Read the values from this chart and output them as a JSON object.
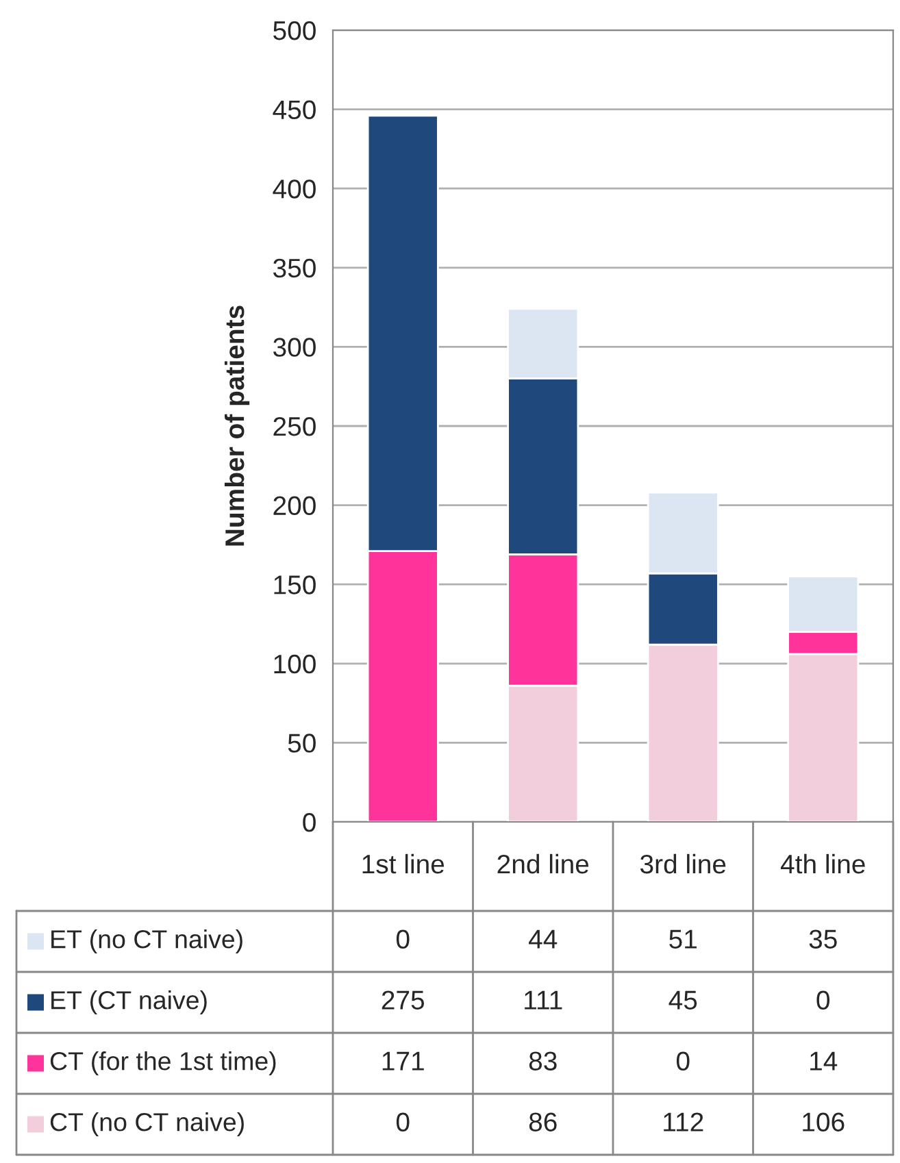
{
  "chart_data": {
    "type": "bar",
    "stacked": true,
    "ylabel": "Number of patients",
    "categories": [
      "1st line",
      "2nd line",
      "3rd line",
      "4th line"
    ],
    "series": [
      {
        "name": "CT (no CT naive)",
        "color": "#f2cedc",
        "values": [
          0,
          86,
          112,
          106
        ]
      },
      {
        "name": "CT (for the 1st time)",
        "color": "#ff3399",
        "values": [
          171,
          83,
          0,
          14
        ]
      },
      {
        "name": "ET (CT naive)",
        "color": "#1f497d",
        "values": [
          275,
          111,
          45,
          0
        ]
      },
      {
        "name": "ET (no CT naive)",
        "color": "#dce6f2",
        "values": [
          0,
          44,
          51,
          35
        ]
      }
    ],
    "ylim": [
      0,
      500
    ],
    "yticks": [
      0,
      50,
      100,
      150,
      200,
      250,
      300,
      350,
      400,
      450,
      500
    ],
    "grid": "y",
    "legend": "bottom",
    "data_labels": true
  }
}
